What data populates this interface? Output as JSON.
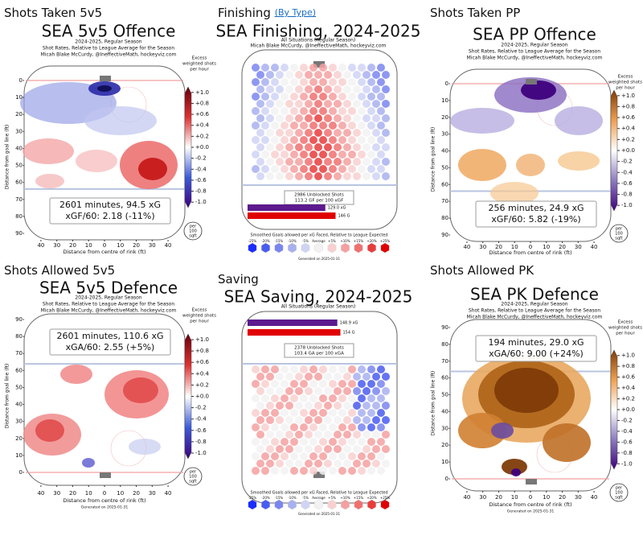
{
  "panels": [
    {
      "kind": "rink",
      "heading": "Shots Taken 5v5",
      "title": "SEA 5v5 Offence",
      "subtitle": [
        "2024-2025, Regular Season",
        "Shot Rates, Relative to League Average for the Season",
        "Micah Blake McCurdy, @IneffectiveMath, hockeyviz.com"
      ],
      "summary": [
        "2601 minutes, 94.5 xG",
        "xGF/60: 2.18 (-11%)"
      ],
      "colorbar_title": [
        "Excess",
        "weighted shots",
        "per hour"
      ],
      "colorbar_ticks": [
        {
          "value": 1,
          "label": "+1.0"
        },
        {
          "value": 0.8,
          "label": "+0.8"
        },
        {
          "value": 0.6,
          "label": "+0.6"
        },
        {
          "value": 0.4,
          "label": "+0.4"
        },
        {
          "value": 0.2,
          "label": "+0.2"
        },
        {
          "value": 0,
          "label": "+0.0"
        },
        {
          "value": -0.2,
          "label": "-0.2"
        },
        {
          "value": -0.4,
          "label": "-0.4"
        },
        {
          "value": -0.6,
          "label": "-0.6"
        },
        {
          "value": -0.8,
          "label": "-0.8"
        },
        {
          "value": -1,
          "label": "-1.0"
        }
      ],
      "colorbar_lim": [
        -1.1,
        1.1
      ],
      "colormap": [
        "#3f007d",
        "#3b5bdb",
        "#ffffff",
        "#e03030",
        "#67000d"
      ],
      "ylim": [
        90,
        0
      ],
      "yticks": [
        0,
        10,
        20,
        30,
        40,
        50,
        60,
        70,
        80,
        90
      ],
      "xlim": [
        -43,
        43
      ],
      "xticks": [
        {
          "value": -40,
          "label": "40"
        },
        {
          "value": -30,
          "label": "30"
        },
        {
          "value": -20,
          "label": "20"
        },
        {
          "value": -10,
          "label": "10"
        },
        0,
        {
          "value": 10,
          "label": "10"
        },
        20,
        30,
        40
      ],
      "ylabel": "Distance from goal line (ft)",
      "xlabel": "Distance from centre of rink (ft)",
      "unit": [
        "per",
        "100",
        "sqft"
      ]
    },
    {
      "kind": "hex",
      "heading": "Finishing",
      "link": "(By Type)",
      "title": "SEA Finishing, 2024-2025",
      "subtitle": [
        "All Situations (Regular Season)",
        "Micah Blake McCurdy, @IneffectiveMath, hockeyviz.com"
      ],
      "summary": [
        "2986 Unblocked Shots",
        "113.2 GF per 100 xGF"
      ],
      "bars": [
        {
          "value": 129.0,
          "label": "129.0 xG",
          "color": "#5c1a8e"
        },
        {
          "value": 146,
          "label": "146 G",
          "color": "#e00000"
        }
      ],
      "legend_title": "Smoothed Goals allowed per xG Faced, Relative to League Expected",
      "legend": [
        "-25%",
        "-20%",
        "-15%",
        "-10%",
        "-5%",
        "Average",
        "+5%",
        "+10%",
        "+15%",
        "+20%",
        "+25%"
      ],
      "legend_colors": [
        "#1a2cff",
        "#4a5cf0",
        "#7a86f0",
        "#a8b0f0",
        "#d0d4f4",
        "#f2f2f2",
        "#f8d0d0",
        "#f4a0a0",
        "#f07070",
        "#e83c3c",
        "#e00000"
      ],
      "generated": "Generated on 2025-01-31"
    },
    {
      "kind": "rink",
      "heading": "Shots Taken PP",
      "title": "SEA PP Offence",
      "subtitle": [
        "2024-2025, Regular Season",
        "Shot Rates, Relative to League Average for the Season",
        "Micah Blake McCurdy, @IneffectiveMath, hockeyviz.com"
      ],
      "summary": [
        "256 minutes, 24.9 xG",
        "xGF/60: 5.82 (-19%)"
      ],
      "colorbar_title": [
        "Excess",
        "weighted shots",
        "per hour"
      ],
      "colorbar_ticks": [
        {
          "value": 1,
          "label": "+1.0"
        },
        {
          "value": 0.8,
          "label": "+0.8"
        },
        {
          "value": 0.6,
          "label": "+0.6"
        },
        {
          "value": 0.4,
          "label": "+0.4"
        },
        {
          "value": 0.2,
          "label": "+0.2"
        },
        {
          "value": 0,
          "label": "+0.0"
        },
        {
          "value": -0.2,
          "label": "-0.2"
        },
        {
          "value": -0.4,
          "label": "-0.4"
        },
        {
          "value": -0.6,
          "label": "-0.6"
        },
        {
          "value": -0.8,
          "label": "-0.8"
        },
        {
          "value": -1,
          "label": "-1.0"
        }
      ],
      "colorbar_lim": [
        -1.1,
        1.1
      ],
      "colormap": [
        "#3f007d",
        "#8c7cc0",
        "#ffffff",
        "#f0a050",
        "#7f3b08"
      ],
      "ylim": [
        90,
        0
      ],
      "yticks": [
        0,
        10,
        20,
        30,
        40,
        50,
        60,
        70,
        80,
        90
      ],
      "xlim": [
        -43,
        43
      ],
      "xticks": [
        {
          "value": -40,
          "label": "40"
        },
        {
          "value": -30,
          "label": "30"
        },
        {
          "value": -20,
          "label": "20"
        },
        {
          "value": -10,
          "label": "10"
        },
        0,
        {
          "value": 10,
          "label": "10"
        },
        20,
        30,
        40
      ],
      "ylabel": "Distance from goal line (ft)",
      "xlabel": "Distance from centre of rink (ft)",
      "unit": [
        "per",
        "100",
        "sqft"
      ]
    },
    {
      "kind": "rink",
      "heading": "Shots Allowed 5v5",
      "title": "SEA 5v5 Defence",
      "subtitle": [
        "2024-2025, Regular Season",
        "Shot Rates, Relative to League Average for the Season",
        "Micah Blake McCurdy, @IneffectiveMath, hockeyviz.com"
      ],
      "summary": [
        "2601 minutes, 110.6 xG",
        "xGA/60: 2.55 (+5%)"
      ],
      "colorbar_title": [
        "Excess",
        "weighted shots",
        "per hour"
      ],
      "colorbar_ticks": [
        {
          "value": 1,
          "label": "+1.0"
        },
        {
          "value": 0.8,
          "label": "+0.8"
        },
        {
          "value": 0.6,
          "label": "+0.6"
        },
        {
          "value": 0.4,
          "label": "+0.4"
        },
        {
          "value": 0.2,
          "label": "+0.2"
        },
        {
          "value": 0,
          "label": "+0.0"
        },
        {
          "value": -0.2,
          "label": "-0.2"
        },
        {
          "value": -0.4,
          "label": "-0.4"
        },
        {
          "value": -0.6,
          "label": "-0.6"
        },
        {
          "value": -0.8,
          "label": "-0.8"
        },
        {
          "value": -1,
          "label": "-1.0"
        }
      ],
      "colorbar_lim": [
        -1.1,
        1.1
      ],
      "colormap": [
        "#3f007d",
        "#3b5bdb",
        "#ffffff",
        "#e03030",
        "#67000d"
      ],
      "ylim": [
        0,
        90
      ],
      "yticks": [
        0,
        10,
        20,
        30,
        40,
        50,
        60,
        70,
        80,
        90
      ],
      "xlim": [
        -43,
        43
      ],
      "xticks": [
        {
          "value": -40,
          "label": "40"
        },
        {
          "value": -30,
          "label": "30"
        },
        {
          "value": -20,
          "label": "20"
        },
        {
          "value": -10,
          "label": "10"
        },
        0,
        {
          "value": 10,
          "label": "10"
        },
        20,
        30,
        40
      ],
      "ylabel": "Distance from goal line (ft)",
      "xlabel": "Distance from centre of rink (ft)",
      "unit": [
        "per",
        "100",
        "sqft"
      ],
      "generated": "Generated on 2025-01-31"
    },
    {
      "kind": "hex",
      "heading": "Saving",
      "title": "SEA Saving, 2024-2025",
      "subtitle": [
        "All Situations (Regular Season)"
      ],
      "summary": [
        "2378 Unblocked Shots",
        "103.4 GA per 100 xGA"
      ],
      "bars": [
        {
          "value": 148.9,
          "label": "148.9 xG",
          "color": "#5c1a8e"
        },
        {
          "value": 154,
          "label": "154 G",
          "color": "#e00000"
        }
      ],
      "legend_title": "Smoothed Goals allowed per xG Faced, Relative to League Expected",
      "legend": [
        "-25%",
        "-20%",
        "-15%",
        "-10%",
        "-5%",
        "Average",
        "+5%",
        "+10%",
        "+15%",
        "+20%",
        "+25%"
      ],
      "legend_colors": [
        "#1a2cff",
        "#4a5cf0",
        "#7a86f0",
        "#a8b0f0",
        "#d0d4f4",
        "#f2f2f2",
        "#f8d0d0",
        "#f4a0a0",
        "#f07070",
        "#e83c3c",
        "#e00000"
      ],
      "generated": "Generated on 2025-01-31"
    },
    {
      "kind": "rink",
      "heading": "Shots Allowed PK",
      "title": "SEA PK Defence",
      "subtitle": [
        "2024-2025, Regular Season",
        "Shot Rates, Relative to League Average for the Season",
        "Micah Blake McCurdy, @IneffectiveMath, hockeyviz.com"
      ],
      "summary": [
        "194 minutes, 29.0 xG",
        "xGA/60: 9.00 (+24%)"
      ],
      "colorbar_title": [
        "Excess",
        "weighted shots",
        "per hour"
      ],
      "colorbar_ticks": [
        {
          "value": 1,
          "label": "+1.0"
        },
        {
          "value": 0.8,
          "label": "+0.8"
        },
        {
          "value": 0.6,
          "label": "+0.6"
        },
        {
          "value": 0.4,
          "label": "+0.4"
        },
        {
          "value": 0.2,
          "label": "+0.2"
        },
        {
          "value": 0,
          "label": "+0.0"
        },
        {
          "value": -0.2,
          "label": "-0.2"
        },
        {
          "value": -0.4,
          "label": "-0.4"
        },
        {
          "value": -0.6,
          "label": "-0.6"
        },
        {
          "value": -0.8,
          "label": "-0.8"
        },
        {
          "value": -1,
          "label": "-1.0"
        }
      ],
      "colorbar_lim": [
        -1.1,
        1.1
      ],
      "colormap": [
        "#3f007d",
        "#8c7cc0",
        "#ffffff",
        "#f0a050",
        "#7f3b08"
      ],
      "ylim": [
        0,
        90
      ],
      "yticks": [
        0,
        10,
        20,
        30,
        40,
        50,
        60,
        70,
        80,
        90
      ],
      "xlim": [
        -43,
        43
      ],
      "xticks": [
        {
          "value": -40,
          "label": "40"
        },
        {
          "value": -30,
          "label": "30"
        },
        {
          "value": -20,
          "label": "20"
        },
        {
          "value": -10,
          "label": "10"
        },
        0,
        {
          "value": 10,
          "label": "10"
        },
        20,
        30,
        40
      ],
      "ylabel": "Distance from goal line (ft)",
      "xlabel": "Distance from centre of rink (ft)",
      "unit": [
        "per",
        "100",
        "sqft"
      ],
      "generated": "Generated on 2025-01-31"
    }
  ]
}
